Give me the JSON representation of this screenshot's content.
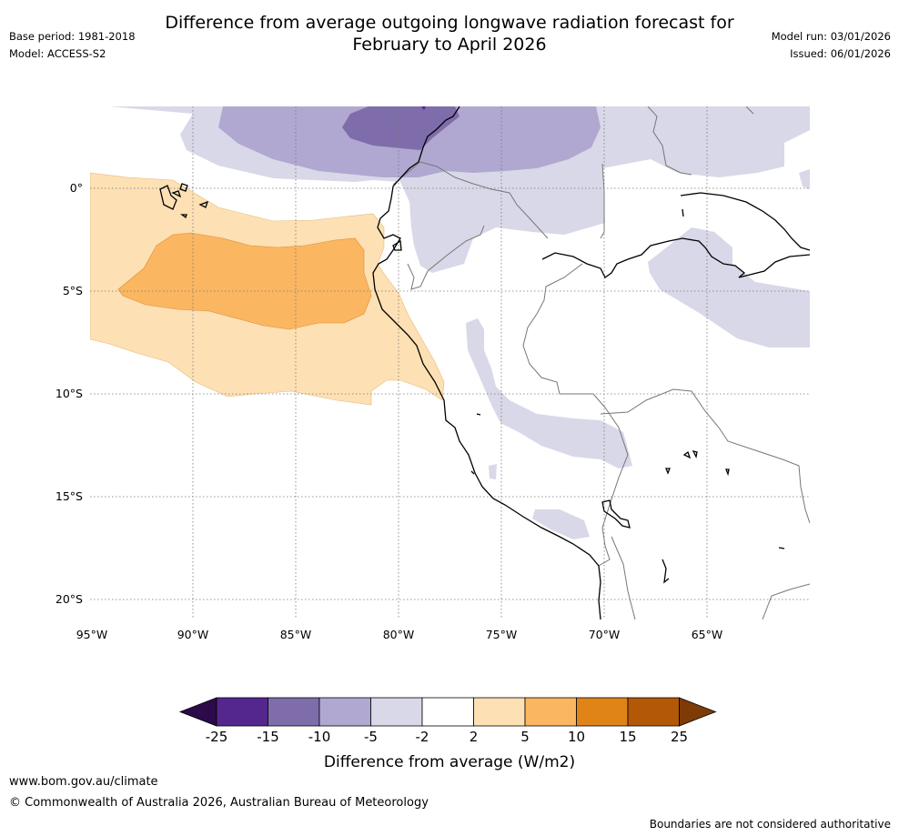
{
  "title": {
    "line1": "Difference from average outgoing longwave radiation forecast for",
    "line2": "February to April 2026"
  },
  "meta_left": {
    "base_period": "Base period: 1981-2018",
    "model": "Model: ACCESS-S2"
  },
  "meta_right": {
    "model_run": "Model run: 03/01/2026",
    "issued": "Issued: 06/01/2026"
  },
  "axes": {
    "lon_labels": [
      "95°W",
      "90°W",
      "85°W",
      "80°W",
      "75°W",
      "70°W",
      "65°W"
    ],
    "lat_labels": [
      "0°",
      "5°S",
      "10°S",
      "15°S",
      "20°S"
    ]
  },
  "colorbar": {
    "ticks": [
      "-25",
      "-15",
      "-10",
      "-5",
      "-2",
      "2",
      "5",
      "10",
      "15",
      "25"
    ],
    "colors": [
      "#2d0a4a",
      "#54278f",
      "#7f6dab",
      "#b0a8d1",
      "#d8d8e8",
      "#ffffff",
      "#fde0b4",
      "#fbb661",
      "#e08418",
      "#b35807",
      "#7e3b08"
    ],
    "label": "Difference from average (W/m2)"
  },
  "footer": {
    "url": "www.bom.gov.au/climate",
    "copyright": "© Commonwealth of Australia 2026, Australian Bureau of Meteorology",
    "disclaimer": "Boundaries are not considered authoritative"
  }
}
